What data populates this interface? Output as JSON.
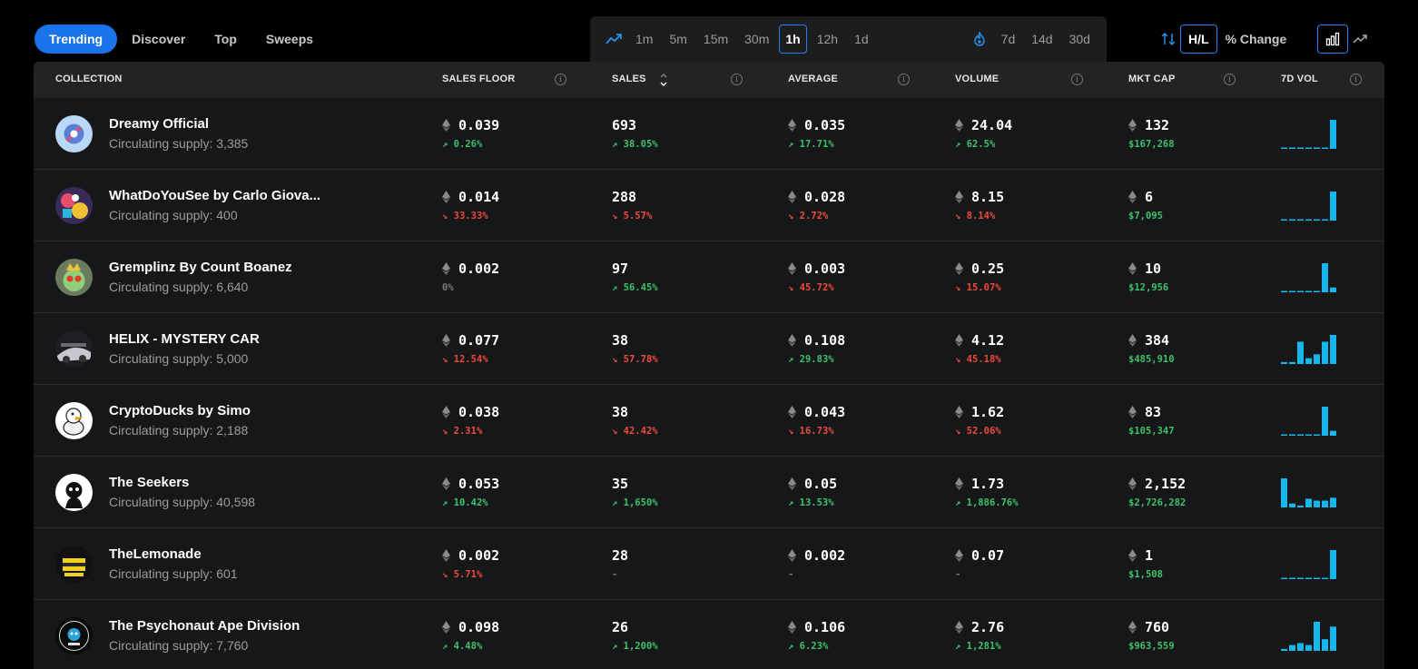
{
  "nav": {
    "tabs": [
      {
        "label": "Trending",
        "active": true
      },
      {
        "label": "Discover",
        "active": false
      },
      {
        "label": "Top",
        "active": false
      },
      {
        "label": "Sweeps",
        "active": false
      }
    ]
  },
  "timeframes": {
    "short": [
      "1m",
      "5m",
      "15m",
      "30m",
      "1h",
      "12h",
      "1d"
    ],
    "long": [
      "7d",
      "14d",
      "30d"
    ],
    "active": "1h"
  },
  "controls": {
    "hl_label": "H/L",
    "change_label": "% Change"
  },
  "colors": {
    "accent": "#1a73e8",
    "up": "#3ec16b",
    "down": "#ef4a3c",
    "spark": "#17b6ec"
  },
  "table": {
    "headers": {
      "collection": "COLLECTION",
      "sales_floor": "SALES FLOOR",
      "sales": "SALES",
      "average": "AVERAGE",
      "volume": "VOLUME",
      "mkt_cap": "MKT CAP",
      "vol7d": "7D VOL"
    },
    "rows": [
      {
        "name": "Dreamy Official",
        "supply": "Circulating supply: 3,385",
        "floor": "0.039",
        "floor_chg": "0.26%",
        "floor_dir": "up",
        "sales": "693",
        "sales_chg": "38.05%",
        "sales_dir": "up",
        "avg": "0.035",
        "avg_chg": "17.71%",
        "avg_dir": "up",
        "vol": "24.04",
        "vol_chg": "62.5%",
        "vol_dir": "up",
        "mcap": "132",
        "mcap_usd": "$167,268",
        "spark": [
          1,
          1,
          1,
          1,
          1,
          1,
          30
        ]
      },
      {
        "name": "WhatDoYouSee by Carlo Giova...",
        "supply": "Circulating supply: 400",
        "floor": "0.014",
        "floor_chg": "33.33%",
        "floor_dir": "down",
        "sales": "288",
        "sales_chg": "5.57%",
        "sales_dir": "down",
        "avg": "0.028",
        "avg_chg": "2.72%",
        "avg_dir": "down",
        "vol": "8.15",
        "vol_chg": "8.14%",
        "vol_dir": "down",
        "mcap": "6",
        "mcap_usd": "$7,095",
        "spark": [
          1,
          1,
          1,
          1,
          1,
          1,
          30
        ]
      },
      {
        "name": "Gremplinz By Count Boanez",
        "supply": "Circulating supply: 6,640",
        "floor": "0.002",
        "floor_chg": "0%",
        "floor_dir": "flat",
        "sales": "97",
        "sales_chg": "56.45%",
        "sales_dir": "up",
        "avg": "0.003",
        "avg_chg": "45.72%",
        "avg_dir": "down",
        "vol": "0.25",
        "vol_chg": "15.07%",
        "vol_dir": "down",
        "mcap": "10",
        "mcap_usd": "$12,956",
        "spark": [
          1,
          1,
          1,
          1,
          1,
          30,
          5
        ]
      },
      {
        "name": "HELIX - MYSTERY CAR",
        "supply": "Circulating supply: 5,000",
        "floor": "0.077",
        "floor_chg": "12.54%",
        "floor_dir": "down",
        "sales": "38",
        "sales_chg": "57.78%",
        "sales_dir": "down",
        "avg": "0.108",
        "avg_chg": "29.83%",
        "avg_dir": "up",
        "vol": "4.12",
        "vol_chg": "45.18%",
        "vol_dir": "down",
        "mcap": "384",
        "mcap_usd": "$485,910",
        "spark": [
          2,
          2,
          23,
          6,
          10,
          23,
          30
        ]
      },
      {
        "name": "CryptoDucks by Simo",
        "supply": "Circulating supply: 2,188",
        "floor": "0.038",
        "floor_chg": "2.31%",
        "floor_dir": "down",
        "sales": "38",
        "sales_chg": "42.42%",
        "sales_dir": "down",
        "avg": "0.043",
        "avg_chg": "16.73%",
        "avg_dir": "down",
        "vol": "1.62",
        "vol_chg": "52.06%",
        "vol_dir": "down",
        "mcap": "83",
        "mcap_usd": "$105,347",
        "spark": [
          1,
          1,
          1,
          1,
          1,
          30,
          5
        ]
      },
      {
        "name": "The Seekers",
        "supply": "Circulating supply: 40,598",
        "floor": "0.053",
        "floor_chg": "10.42%",
        "floor_dir": "up",
        "sales": "35",
        "sales_chg": "1,650%",
        "sales_dir": "up",
        "avg": "0.05",
        "avg_chg": "13.53%",
        "avg_dir": "up",
        "vol": "1.73",
        "vol_chg": "1,886.76%",
        "vol_dir": "up",
        "mcap": "2,152",
        "mcap_usd": "$2,726,282",
        "spark": [
          30,
          4,
          2,
          9,
          7,
          7,
          10
        ]
      },
      {
        "name": "TheLemonade",
        "supply": "Circulating supply: 601",
        "floor": "0.002",
        "floor_chg": "5.71%",
        "floor_dir": "down",
        "sales": "28",
        "sales_chg": "-",
        "sales_dir": "flat",
        "avg": "0.002",
        "avg_chg": "-",
        "avg_dir": "flat",
        "vol": "0.07",
        "vol_chg": "-",
        "vol_dir": "flat",
        "mcap": "1",
        "mcap_usd": "$1,508",
        "spark": [
          1,
          1,
          1,
          1,
          1,
          1,
          30
        ]
      },
      {
        "name": "The Psychonaut Ape Division",
        "supply": "Circulating supply: 7,760",
        "floor": "0.098",
        "floor_chg": "4.48%",
        "floor_dir": "up",
        "sales": "26",
        "sales_chg": "1,200%",
        "sales_dir": "up",
        "avg": "0.106",
        "avg_chg": "6.23%",
        "avg_dir": "up",
        "vol": "2.76",
        "vol_chg": "1,281%",
        "vol_dir": "up",
        "mcap": "760",
        "mcap_usd": "$963,559",
        "spark": [
          2,
          6,
          8,
          6,
          30,
          12,
          25
        ]
      }
    ]
  }
}
